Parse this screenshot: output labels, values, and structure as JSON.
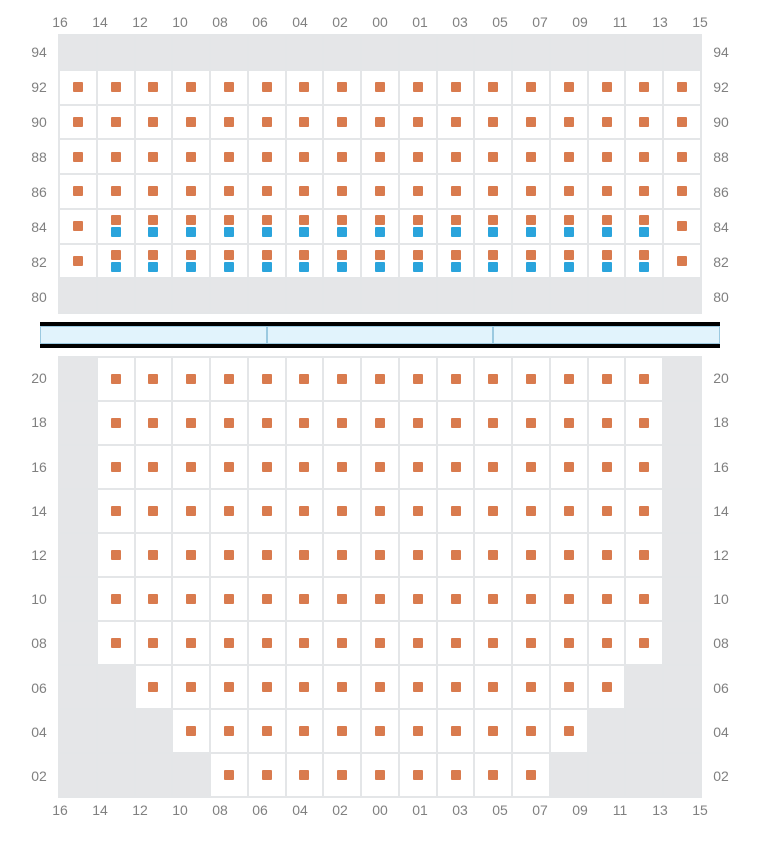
{
  "colors": {
    "orange": "#d97b4e",
    "blue": "#2aa4dc",
    "blocked": "#e5e6e8",
    "grid_border": "#e4e6e8",
    "label_color": "#808080",
    "divider_fill": "#e1f3fc",
    "divider_border": "#9bc9e0",
    "divider_band": "#000000"
  },
  "column_labels": [
    "16",
    "14",
    "12",
    "10",
    "08",
    "06",
    "04",
    "02",
    "00",
    "01",
    "03",
    "05",
    "07",
    "09",
    "11",
    "13",
    "15"
  ],
  "upper": {
    "row_labels": [
      "94",
      "92",
      "90",
      "88",
      "86",
      "84",
      "82",
      "80"
    ],
    "cells": [
      [
        "X",
        "X",
        "X",
        "X",
        "X",
        "X",
        "X",
        "X",
        "X",
        "X",
        "X",
        "X",
        "X",
        "X",
        "X",
        "X",
        "X"
      ],
      [
        "O",
        "O",
        "O",
        "O",
        "O",
        "O",
        "O",
        "O",
        "O",
        "O",
        "O",
        "O",
        "O",
        "O",
        "O",
        "O",
        "O"
      ],
      [
        "O",
        "O",
        "O",
        "O",
        "O",
        "O",
        "O",
        "O",
        "O",
        "O",
        "O",
        "O",
        "O",
        "O",
        "O",
        "O",
        "O"
      ],
      [
        "O",
        "O",
        "O",
        "O",
        "O",
        "O",
        "O",
        "O",
        "O",
        "O",
        "O",
        "O",
        "O",
        "O",
        "O",
        "O",
        "O"
      ],
      [
        "O",
        "O",
        "O",
        "O",
        "O",
        "O",
        "O",
        "O",
        "O",
        "O",
        "O",
        "O",
        "O",
        "O",
        "O",
        "O",
        "O"
      ],
      [
        "O",
        "OB",
        "OB",
        "OB",
        "OB",
        "OB",
        "OB",
        "OB",
        "OB",
        "OB",
        "OB",
        "OB",
        "OB",
        "OB",
        "OB",
        "OB",
        "O"
      ],
      [
        "O",
        "OB",
        "OB",
        "OB",
        "OB",
        "OB",
        "OB",
        "OB",
        "OB",
        "OB",
        "OB",
        "OB",
        "OB",
        "OB",
        "OB",
        "OB",
        "O"
      ],
      [
        "X",
        "X",
        "X",
        "X",
        "X",
        "X",
        "X",
        "X",
        "X",
        "X",
        "X",
        "X",
        "X",
        "X",
        "X",
        "X",
        "X"
      ]
    ]
  },
  "divider_segments": 3,
  "lower": {
    "row_labels": [
      "20",
      "18",
      "16",
      "14",
      "12",
      "10",
      "08",
      "06",
      "04",
      "02"
    ],
    "cells": [
      [
        "X",
        "O",
        "O",
        "O",
        "O",
        "O",
        "O",
        "O",
        "O",
        "O",
        "O",
        "O",
        "O",
        "O",
        "O",
        "O",
        "X"
      ],
      [
        "X",
        "O",
        "O",
        "O",
        "O",
        "O",
        "O",
        "O",
        "O",
        "O",
        "O",
        "O",
        "O",
        "O",
        "O",
        "O",
        "X"
      ],
      [
        "X",
        "O",
        "O",
        "O",
        "O",
        "O",
        "O",
        "O",
        "O",
        "O",
        "O",
        "O",
        "O",
        "O",
        "O",
        "O",
        "X"
      ],
      [
        "X",
        "O",
        "O",
        "O",
        "O",
        "O",
        "O",
        "O",
        "O",
        "O",
        "O",
        "O",
        "O",
        "O",
        "O",
        "O",
        "X"
      ],
      [
        "X",
        "O",
        "O",
        "O",
        "O",
        "O",
        "O",
        "O",
        "O",
        "O",
        "O",
        "O",
        "O",
        "O",
        "O",
        "O",
        "X"
      ],
      [
        "X",
        "O",
        "O",
        "O",
        "O",
        "O",
        "O",
        "O",
        "O",
        "O",
        "O",
        "O",
        "O",
        "O",
        "O",
        "O",
        "X"
      ],
      [
        "X",
        "O",
        "O",
        "O",
        "O",
        "O",
        "O",
        "O",
        "O",
        "O",
        "O",
        "O",
        "O",
        "O",
        "O",
        "O",
        "X"
      ],
      [
        "X",
        "X",
        "O",
        "O",
        "O",
        "O",
        "O",
        "O",
        "O",
        "O",
        "O",
        "O",
        "O",
        "O",
        "O",
        "X",
        "X"
      ],
      [
        "X",
        "X",
        "X",
        "O",
        "O",
        "O",
        "O",
        "O",
        "O",
        "O",
        "O",
        "O",
        "O",
        "O",
        "X",
        "X",
        "X"
      ],
      [
        "X",
        "X",
        "X",
        "X",
        "O",
        "O",
        "O",
        "O",
        "O",
        "O",
        "O",
        "O",
        "O",
        "X",
        "X",
        "X",
        "X"
      ]
    ]
  }
}
